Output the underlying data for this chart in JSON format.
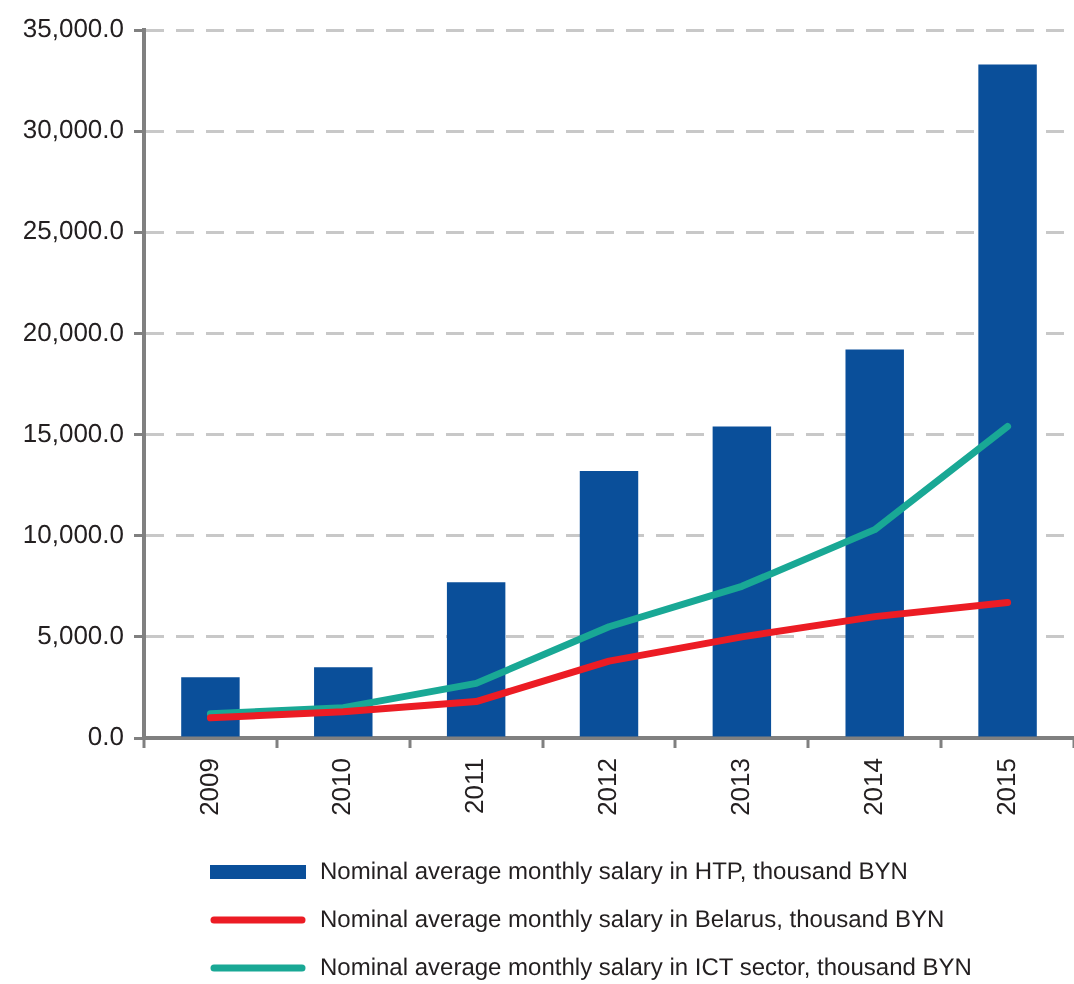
{
  "chart_data": {
    "type": "bar",
    "categories": [
      "2009",
      "2010",
      "2011",
      "2012",
      "2013",
      "2014",
      "2015"
    ],
    "series": [
      {
        "name": "Nominal average monthly salary in HTP, thousand BYN",
        "color": "#0a4f9a",
        "values": [
          3000,
          3500,
          7700,
          13200,
          15400,
          19200,
          33300
        ]
      },
      {
        "name": "Nominal average monthly salary in Belarus, thousand BYN",
        "type": "line",
        "color": "#ec1c24",
        "values": [
          1000,
          1300,
          1800,
          3800,
          5000,
          6000,
          6700
        ]
      },
      {
        "name": "Nominal average monthly salary in ICT sector, thousand BYN",
        "type": "line",
        "color": "#19a895",
        "values": [
          1200,
          1500,
          2700,
          5500,
          7500,
          10300,
          15400
        ]
      }
    ],
    "ylim": [
      0,
      35000
    ],
    "yticks": [
      {
        "value": 0,
        "label": "0.0"
      },
      {
        "value": 5000,
        "label": "5,000.0"
      },
      {
        "value": 10000,
        "label": "10,000.0"
      },
      {
        "value": 15000,
        "label": "15,000.0"
      },
      {
        "value": 20000,
        "label": "20,000.0"
      },
      {
        "value": 25000,
        "label": "25,000.0"
      },
      {
        "value": 30000,
        "label": "30,000.0"
      },
      {
        "value": 35000,
        "label": "35,000.0"
      }
    ],
    "grid": "y",
    "legend": "bottom",
    "marker": "none"
  }
}
